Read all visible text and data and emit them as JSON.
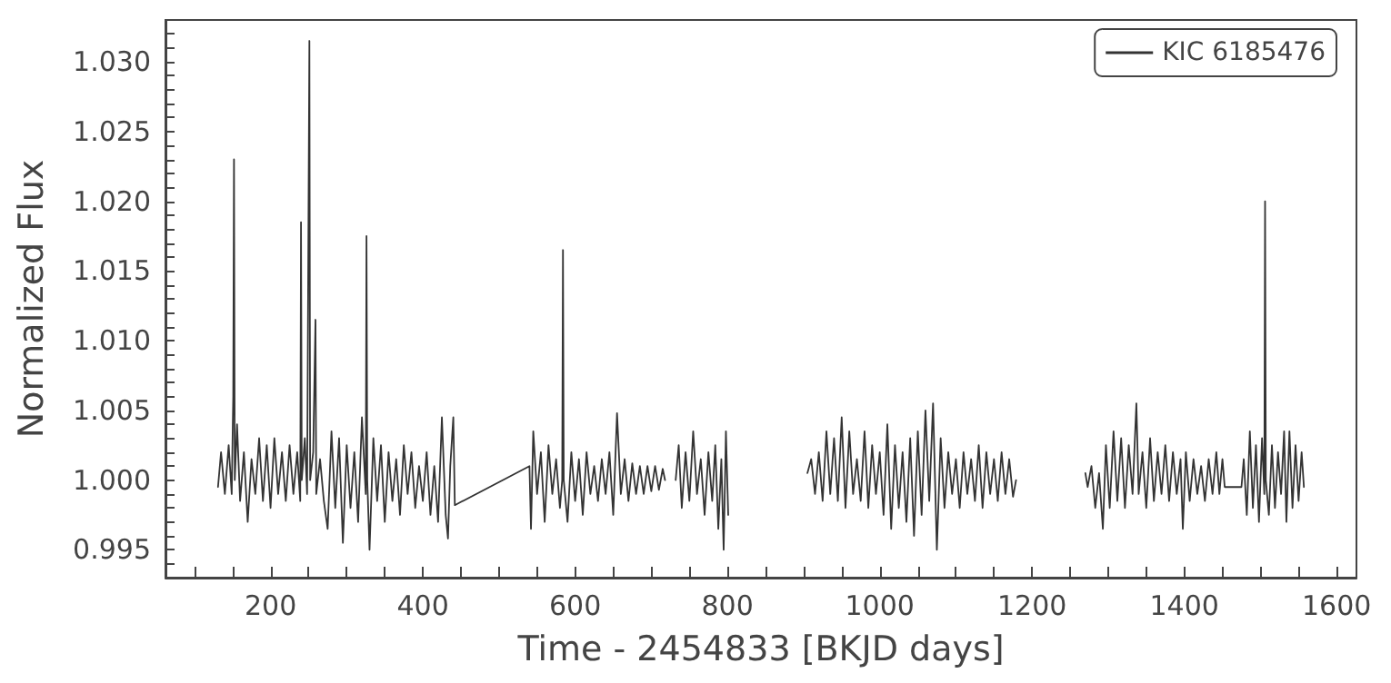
{
  "chart_data": {
    "type": "line",
    "xlabel": "Time - 2454833 [BKJD days]",
    "ylabel": "Normalized Flux",
    "xlim": [
      62,
      1626
    ],
    "ylim": [
      0.993,
      1.033
    ],
    "xticks": [
      {
        "value": 100,
        "label": null
      },
      {
        "value": 150,
        "label": null
      },
      200,
      {
        "value": 250,
        "label": null
      },
      {
        "value": 300,
        "label": null
      },
      {
        "value": 350,
        "label": null
      },
      400,
      {
        "value": 450,
        "label": null
      },
      {
        "value": 500,
        "label": null
      },
      {
        "value": 550,
        "label": null
      },
      600,
      {
        "value": 650,
        "label": null
      },
      {
        "value": 700,
        "label": null
      },
      {
        "value": 750,
        "label": null
      },
      800,
      {
        "value": 850,
        "label": null
      },
      {
        "value": 900,
        "label": null
      },
      {
        "value": 950,
        "label": null
      },
      1000,
      {
        "value": 1050,
        "label": null
      },
      {
        "value": 1100,
        "label": null
      },
      {
        "value": 1150,
        "label": null
      },
      1200,
      {
        "value": 1250,
        "label": null
      },
      {
        "value": 1300,
        "label": null
      },
      {
        "value": 1350,
        "label": null
      },
      1400,
      {
        "value": 1450,
        "label": null
      },
      {
        "value": 1500,
        "label": null
      },
      {
        "value": 1550,
        "label": null
      },
      1600
    ],
    "yticks": [
      {
        "value": 0.994,
        "label": null
      },
      {
        "value": 0.995,
        "label": "0.995"
      },
      {
        "value": 0.996,
        "label": null
      },
      {
        "value": 0.997,
        "label": null
      },
      {
        "value": 0.998,
        "label": null
      },
      {
        "value": 0.999,
        "label": null
      },
      {
        "value": 1,
        "label": "1.000"
      },
      {
        "value": 1.001,
        "label": null
      },
      {
        "value": 1.002,
        "label": null
      },
      {
        "value": 1.003,
        "label": null
      },
      {
        "value": 1.004,
        "label": null
      },
      {
        "value": 1.005,
        "label": "1.005"
      },
      {
        "value": 1.006,
        "label": null
      },
      {
        "value": 1.007,
        "label": null
      },
      {
        "value": 1.008,
        "label": null
      },
      {
        "value": 1.009,
        "label": null
      },
      {
        "value": 1.01,
        "label": "1.010"
      },
      {
        "value": 1.011,
        "label": null
      },
      {
        "value": 1.012,
        "label": null
      },
      {
        "value": 1.013,
        "label": null
      },
      {
        "value": 1.014,
        "label": null
      },
      {
        "value": 1.015,
        "label": "1.015"
      },
      {
        "value": 1.016,
        "label": null
      },
      {
        "value": 1.017,
        "label": null
      },
      {
        "value": 1.018,
        "label": null
      },
      {
        "value": 1.019,
        "label": null
      },
      {
        "value": 1.02,
        "label": "1.020"
      },
      {
        "value": 1.021,
        "label": null
      },
      {
        "value": 1.022,
        "label": null
      },
      {
        "value": 1.023,
        "label": null
      },
      {
        "value": 1.024,
        "label": null
      },
      {
        "value": 1.025,
        "label": "1.025"
      },
      {
        "value": 1.026,
        "label": null
      },
      {
        "value": 1.027,
        "label": null
      },
      {
        "value": 1.028,
        "label": null
      },
      {
        "value": 1.029,
        "label": null
      },
      {
        "value": 1.03,
        "label": "1.030"
      },
      {
        "value": 1.031,
        "label": null
      },
      {
        "value": 1.032,
        "label": null
      }
    ],
    "grid": false,
    "legend": "top right",
    "marker": "none",
    "line_style": "solid",
    "series": [
      {
        "name": "KIC 6185476",
        "color": "#333333",
        "x": [
          131,
          135,
          140,
          145,
          149,
          151,
          152,
          153,
          156,
          160,
          165,
          170,
          175,
          180,
          185,
          190,
          195,
          200,
          205,
          210,
          215,
          220,
          225,
          230,
          235,
          239,
          240,
          241,
          245,
          248,
          251,
          252,
          256,
          259,
          260,
          265,
          270,
          275,
          280,
          285,
          290,
          295,
          300,
          305,
          310,
          315,
          320,
          325,
          326,
          327,
          330,
          335,
          340,
          345,
          350,
          355,
          360,
          365,
          370,
          375,
          380,
          385,
          390,
          395,
          400,
          405,
          410,
          415,
          420,
          425,
          430,
          433,
          436,
          440,
          442,
          540,
          542,
          545,
          550,
          555,
          560,
          565,
          570,
          575,
          580,
          583,
          584,
          585,
          590,
          595,
          600,
          605,
          610,
          615,
          620,
          625,
          630,
          635,
          640,
          645,
          650,
          655,
          660,
          665,
          670,
          675,
          680,
          685,
          690,
          695,
          700,
          705,
          710,
          715,
          718,
          725,
          732,
          736,
          740,
          745,
          750,
          755,
          760,
          765,
          770,
          775,
          780,
          784,
          788,
          792,
          795,
          798,
          801,
          850,
          905,
          910,
          915,
          920,
          925,
          930,
          935,
          940,
          945,
          950,
          955,
          960,
          965,
          970,
          975,
          980,
          985,
          990,
          995,
          1000,
          1005,
          1010,
          1015,
          1020,
          1025,
          1030,
          1035,
          1040,
          1045,
          1050,
          1055,
          1060,
          1065,
          1070,
          1075,
          1080,
          1085,
          1090,
          1095,
          1100,
          1105,
          1110,
          1115,
          1120,
          1125,
          1130,
          1135,
          1140,
          1145,
          1150,
          1155,
          1160,
          1165,
          1170,
          1175,
          1179,
          1225,
          1270,
          1273,
          1278,
          1283,
          1288,
          1293,
          1297,
          1302,
          1307,
          1312,
          1317,
          1322,
          1327,
          1332,
          1337,
          1340,
          1345,
          1350,
          1355,
          1360,
          1365,
          1370,
          1375,
          1380,
          1385,
          1390,
          1395,
          1398,
          1402,
          1407,
          1412,
          1417,
          1422,
          1427,
          1432,
          1437,
          1442,
          1446,
          1450,
          1453,
          1475,
          1478,
          1482,
          1486,
          1490,
          1494,
          1498,
          1502,
          1505,
          1506,
          1507,
          1511,
          1515,
          1519,
          1523,
          1527,
          1531,
          1534,
          1538,
          1542,
          1546,
          1550,
          1554,
          1557
        ],
        "values": [
          0.9995,
          1.002,
          0.999,
          1.0025,
          0.999,
          1.006,
          1.023,
          1.0,
          1.004,
          0.9985,
          1.002,
          0.997,
          1.0015,
          0.999,
          1.003,
          0.9985,
          1.0025,
          0.998,
          1.003,
          0.999,
          1.002,
          0.9985,
          1.0025,
          0.999,
          1.002,
          0.9985,
          1.0185,
          1.0,
          1.003,
          0.999,
          1.0315,
          1.0,
          1.002,
          1.0115,
          0.999,
          1.0015,
          0.9985,
          0.9965,
          1.0035,
          0.998,
          1.003,
          0.9955,
          1.0025,
          0.998,
          1.002,
          0.997,
          1.0045,
          0.999,
          1.0175,
          1.0,
          0.995,
          1.003,
          0.9985,
          1.0025,
          0.997,
          1.002,
          0.9985,
          1.0015,
          0.9975,
          1.0025,
          0.999,
          1.002,
          0.998,
          1.001,
          0.9985,
          1.002,
          0.9975,
          1.001,
          0.997,
          1.0045,
          0.9975,
          0.9958,
          1.001,
          1.0045,
          0.9982,
          1.001,
          0.9965,
          1.0035,
          0.999,
          1.002,
          0.997,
          1.0025,
          0.999,
          1.0015,
          0.998,
          1.0,
          1.0165,
          1.0,
          0.997,
          1.002,
          0.9985,
          1.0015,
          0.9975,
          1.002,
          0.999,
          1.001,
          0.9985,
          1.0015,
          0.999,
          1.002,
          0.9975,
          1.0048,
          0.999,
          1.0015,
          0.9985,
          1.0012,
          0.999,
          1.001,
          0.999,
          1.001,
          0.9992,
          1.001,
          0.9993,
          1.0008,
          1.0,
          null,
          1.0,
          1.0025,
          0.998,
          1.002,
          0.9985,
          1.0035,
          0.999,
          1.0015,
          0.9975,
          1.002,
          0.9985,
          1.0025,
          0.9965,
          1.0015,
          0.995,
          1.0035,
          0.9975,
          null,
          1.0005,
          1.0015,
          0.999,
          1.002,
          0.9985,
          1.0035,
          0.999,
          1.003,
          0.9985,
          1.0045,
          0.998,
          1.0035,
          0.999,
          1.0015,
          0.9985,
          1.0035,
          0.998,
          1.0025,
          0.999,
          1.002,
          0.9975,
          1.004,
          0.9965,
          1.0025,
          0.998,
          1.002,
          0.997,
          1.003,
          0.996,
          1.0035,
          0.9975,
          1.005,
          0.9985,
          1.0055,
          0.995,
          1.003,
          0.998,
          1.002,
          0.999,
          1.0015,
          0.998,
          1.002,
          0.999,
          1.0015,
          0.9985,
          1.0025,
          0.998,
          1.002,
          0.999,
          1.0015,
          0.9985,
          1.002,
          0.999,
          1.0015,
          0.9988,
          1.0,
          null,
          1.0005,
          0.9995,
          1.001,
          0.998,
          1.0005,
          0.9965,
          1.0025,
          0.998,
          1.0035,
          0.9985,
          1.003,
          0.998,
          1.0025,
          0.999,
          1.0055,
          0.999,
          1.002,
          0.998,
          1.003,
          0.9985,
          1.002,
          0.999,
          1.0025,
          0.9985,
          1.002,
          0.999,
          1.0015,
          0.9965,
          1.002,
          0.9985,
          1.0015,
          0.999,
          1.001,
          0.9985,
          1.0015,
          0.999,
          1.002,
          0.999,
          1.0015,
          0.9995,
          0.9995,
          1.0015,
          0.9975,
          1.0035,
          0.998,
          1.0025,
          0.997,
          1.003,
          0.999,
          1.02,
          1.0,
          0.9975,
          1.0025,
          0.998,
          1.002,
          0.999,
          1.0035,
          0.997,
          1.0035,
          0.998,
          1.0025,
          0.9985,
          1.002,
          0.9995
        ]
      }
    ]
  }
}
